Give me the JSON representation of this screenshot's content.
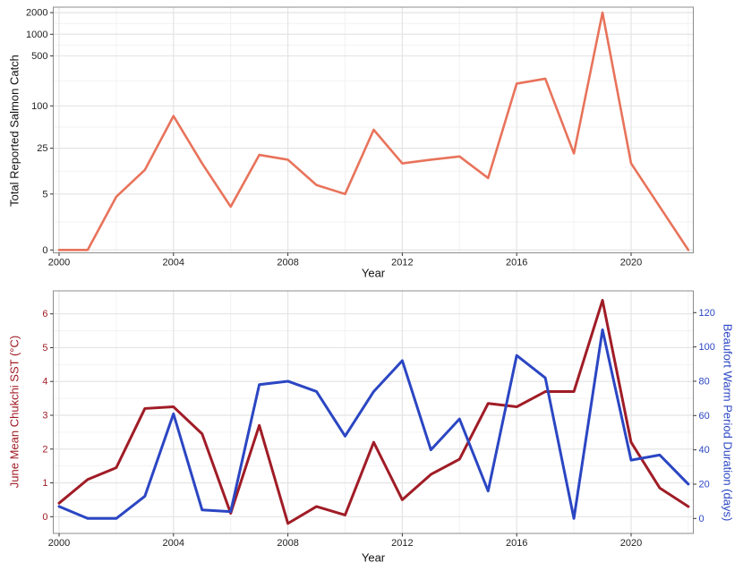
{
  "chart_data": [
    {
      "type": "line",
      "title": "",
      "xlabel": "Year",
      "ylabel": "Total Reported Salmon Catch",
      "yscale": "pseudo-log (log10(y+1))",
      "grid": "on",
      "line_color": "#E8735B",
      "x": [
        2000,
        2001,
        2002,
        2003,
        2004,
        2005,
        2006,
        2007,
        2008,
        2009,
        2010,
        2011,
        2012,
        2013,
        2014,
        2015,
        2016,
        2017,
        2018,
        2019,
        2020,
        2021,
        2022
      ],
      "values": [
        0,
        0,
        4.5,
        12,
        72,
        15,
        3,
        20,
        17,
        7,
        5,
        46,
        15,
        17,
        19,
        9,
        205,
        240,
        21,
        2000,
        15,
        3,
        0
      ],
      "yticks": [
        0,
        5,
        25,
        100,
        500,
        1000,
        2000
      ],
      "xticks": [
        2000,
        2004,
        2008,
        2012,
        2016,
        2020
      ],
      "xminor": [
        2002,
        2006,
        2010,
        2014,
        2018,
        2022
      ],
      "xlim": [
        1999.8,
        2022.2
      ],
      "ylim": [
        0,
        2000
      ]
    },
    {
      "type": "line",
      "title": "",
      "xlabel": "Year",
      "grid": "on",
      "x": [
        2000,
        2001,
        2002,
        2003,
        2004,
        2005,
        2006,
        2007,
        2008,
        2009,
        2010,
        2011,
        2012,
        2013,
        2014,
        2015,
        2016,
        2017,
        2018,
        2019,
        2020,
        2021,
        2022
      ],
      "series": [
        {
          "name": "June Mean Chukchi SST (°C)",
          "axis": "left",
          "color": "#A01C26",
          "values": [
            0.4,
            1.1,
            1.45,
            3.2,
            3.25,
            2.45,
            0.1,
            2.7,
            -0.2,
            0.3,
            0.05,
            2.2,
            0.5,
            1.25,
            1.7,
            3.35,
            3.25,
            3.7,
            3.7,
            6.4,
            2.2,
            0.85,
            0.3
          ]
        },
        {
          "name": "Beaufort Warm Period Duration (days)",
          "axis": "right",
          "color": "#2B46C3",
          "values": [
            7,
            0,
            0,
            13,
            61,
            5,
            4,
            78,
            80,
            74,
            48,
            74,
            92,
            40,
            58,
            16,
            95,
            82,
            0,
            110,
            34,
            37,
            20
          ]
        }
      ],
      "left_yticks": [
        0,
        1,
        2,
        3,
        4,
        5,
        6
      ],
      "right_yticks": [
        0,
        20,
        40,
        60,
        80,
        100,
        120
      ],
      "xticks": [
        2000,
        2004,
        2008,
        2012,
        2016,
        2020
      ],
      "xminor": [
        2002,
        2006,
        2010,
        2014,
        2018,
        2022
      ],
      "left_ylim": [
        -0.49,
        6.68
      ],
      "right_ylim": [
        -8.7,
        132.7
      ]
    }
  ],
  "style": {
    "grid_major_color": "#E4E4E4",
    "grid_minor_color": "#F2F2F2",
    "panel_border_color": "#8C8C8C",
    "tick_color": "#333333",
    "tick_label_color": "#1F1F1F"
  }
}
